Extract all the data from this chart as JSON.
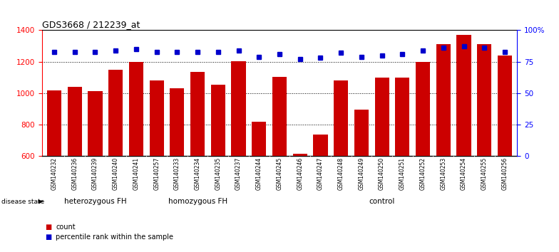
{
  "title": "GDS3668 / 212239_at",
  "samples": [
    "GSM140232",
    "GSM140236",
    "GSM140239",
    "GSM140240",
    "GSM140241",
    "GSM140257",
    "GSM140233",
    "GSM140234",
    "GSM140235",
    "GSM140237",
    "GSM140244",
    "GSM140245",
    "GSM140246",
    "GSM140247",
    "GSM140248",
    "GSM140249",
    "GSM140250",
    "GSM140251",
    "GSM140252",
    "GSM140253",
    "GSM140254",
    "GSM140255",
    "GSM140256"
  ],
  "counts": [
    1020,
    1040,
    1015,
    1150,
    1200,
    1080,
    1030,
    1135,
    1055,
    1205,
    820,
    1105,
    615,
    740,
    1080,
    895,
    1100,
    1100,
    1200,
    1310,
    1370,
    1310,
    1240
  ],
  "percentiles": [
    83,
    83,
    83,
    84,
    85,
    83,
    83,
    83,
    83,
    84,
    79,
    81,
    77,
    78,
    82,
    79,
    80,
    81,
    84,
    86,
    87,
    86,
    83
  ],
  "group_boundaries": [
    0,
    5,
    10,
    23
  ],
  "group_labels": [
    "heterozygous FH",
    "homozygous FH",
    "control"
  ],
  "bar_color": "#CC0000",
  "dot_color": "#0000CC",
  "ylim_left": [
    600,
    1400
  ],
  "ylim_right": [
    0,
    100
  ],
  "yticks_left": [
    600,
    800,
    1000,
    1200,
    1400
  ],
  "yticks_right": [
    0,
    25,
    50,
    75,
    100
  ],
  "ytick_labels_right": [
    "0",
    "25",
    "50",
    "75",
    "100%"
  ],
  "grid_lines": [
    800,
    1000,
    1200
  ],
  "tick_label_area_color": "#C8C8C8",
  "group_area_color": "#90EE90",
  "legend_count_label": "count",
  "legend_pct_label": "percentile rank within the sample"
}
